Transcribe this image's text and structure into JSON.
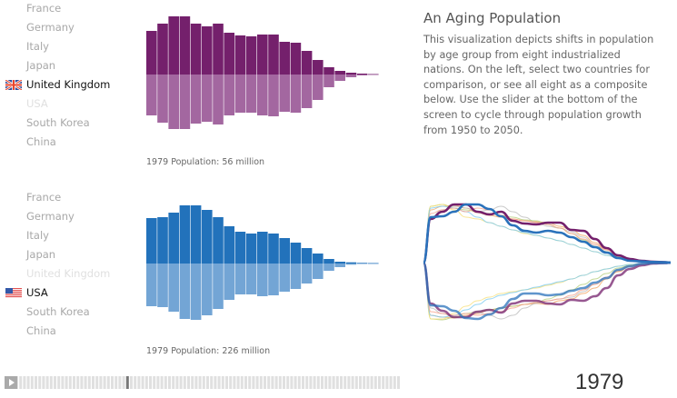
{
  "panels": [
    {
      "countries": [
        "France",
        "Germany",
        "Italy",
        "Japan",
        "United Kingdom",
        "USA",
        "South Korea",
        "China"
      ],
      "selected": "United Kingdom",
      "disabled": "USA",
      "flag": "uk-flag",
      "population_label": "1979 Population: 56 million",
      "colors": {
        "top": "#74206c",
        "bottom": "#a367a0"
      },
      "male": [
        48,
        56,
        64,
        64,
        56,
        53,
        56,
        46,
        43,
        42,
        44,
        44,
        36,
        35,
        26,
        16,
        8,
        4,
        2,
        1,
        0.5
      ],
      "female": [
        45,
        53,
        60,
        60,
        54,
        52,
        55,
        45,
        42,
        42,
        45,
        46,
        41,
        42,
        37,
        28,
        14,
        7,
        3,
        1,
        0.5
      ]
    },
    {
      "countries": [
        "France",
        "Germany",
        "Italy",
        "Japan",
        "United Kingdom",
        "USA",
        "South Korea",
        "China"
      ],
      "selected": "USA",
      "disabled": "United Kingdom",
      "flag": "us-flag",
      "population_label": "1979 Population: 226 million",
      "colors": {
        "top": "#2272bb",
        "bottom": "#73a5d5"
      },
      "male": [
        50,
        51,
        56,
        64,
        64,
        59,
        51,
        41,
        35,
        33,
        35,
        33,
        28,
        23,
        17,
        11,
        5,
        2,
        1.3,
        0.7,
        0.5
      ],
      "female": [
        47,
        48,
        53,
        61,
        62,
        57,
        50,
        40,
        34,
        34,
        36,
        35,
        31,
        28,
        22,
        17,
        8,
        4,
        1.3,
        0.5,
        0.5
      ]
    }
  ],
  "info": {
    "title": "An Aging Population",
    "description": "This visualization depicts shifts in population by age group from eight industrialized nations. On the left, select two countries for comparison, or see all eight as a composite below. Use the slider at the bottom of the screen to cycle through population growth from 1950 to 2050."
  },
  "composite": {
    "highlight": [
      {
        "color": "#74206c",
        "panel": 0
      },
      {
        "color": "#2a72bb",
        "panel": 1
      }
    ],
    "others": [
      {
        "color": "#f4a460",
        "male": [
          58,
          62,
          63,
          60,
          55,
          52,
          50,
          48,
          46,
          45,
          44,
          40,
          36,
          30,
          22,
          14,
          7,
          3,
          1,
          0.5,
          0.3
        ],
        "female": [
          58,
          60,
          61,
          58,
          56,
          52,
          50,
          48,
          46,
          45,
          46,
          42,
          40,
          34,
          28,
          18,
          10,
          4,
          1.5,
          0.5,
          0.3
        ]
      },
      {
        "color": "#bbbbbb",
        "male": [
          50,
          58,
          62,
          60,
          56,
          58,
          62,
          56,
          50,
          44,
          40,
          38,
          34,
          28,
          20,
          12,
          6,
          3,
          1,
          0.5,
          0.3
        ],
        "female": [
          50,
          56,
          60,
          60,
          55,
          58,
          62,
          58,
          50,
          45,
          42,
          40,
          38,
          32,
          24,
          16,
          8,
          3,
          1,
          0.5,
          0.3
        ]
      },
      {
        "color": "#b5cf7d",
        "male": [
          62,
          64,
          60,
          58,
          56,
          54,
          52,
          50,
          47,
          46,
          42,
          38,
          32,
          25,
          18,
          12,
          6,
          3,
          1,
          0.5,
          0.3
        ],
        "female": [
          62,
          63,
          60,
          56,
          54,
          52,
          50,
          48,
          46,
          44,
          40,
          36,
          30,
          24,
          18,
          12,
          6,
          3,
          1,
          0.5,
          0.3
        ]
      },
      {
        "color": "#f7e07a",
        "male": [
          62,
          64,
          58,
          50,
          48,
          44,
          40,
          36,
          32,
          30,
          27,
          24,
          20,
          16,
          12,
          8,
          5,
          3,
          1,
          0.5,
          0.3
        ],
        "female": [
          62,
          62,
          56,
          48,
          42,
          38,
          34,
          32,
          30,
          28,
          25,
          22,
          18,
          14,
          10,
          7,
          4,
          2,
          1,
          0.5,
          0.3
        ]
      },
      {
        "color": "#7ccaf0",
        "male": [
          60,
          62,
          60,
          56,
          50,
          44,
          40,
          36,
          33,
          30,
          27,
          24,
          20,
          16,
          12,
          8,
          5,
          3,
          1,
          0.5,
          0.3
        ],
        "female": [
          58,
          60,
          58,
          52,
          46,
          40,
          36,
          33,
          30,
          27,
          24,
          21,
          18,
          14,
          10,
          7,
          4,
          2,
          1,
          0.5,
          0.3
        ]
      },
      {
        "color": "#f7a08a",
        "male": [
          54,
          58,
          60,
          56,
          60,
          58,
          52,
          48,
          46,
          44,
          42,
          38,
          32,
          26,
          20,
          14,
          8,
          4,
          1.5,
          0.5,
          0.3
        ],
        "female": [
          54,
          56,
          58,
          56,
          58,
          56,
          54,
          50,
          46,
          44,
          42,
          40,
          36,
          30,
          24,
          16,
          9,
          4,
          1.5,
          0.5,
          0.3
        ]
      }
    ]
  },
  "slider": {
    "start": 1950,
    "end": 2050,
    "value": 1979,
    "year_label": "1979",
    "play_icon": "play-icon"
  }
}
